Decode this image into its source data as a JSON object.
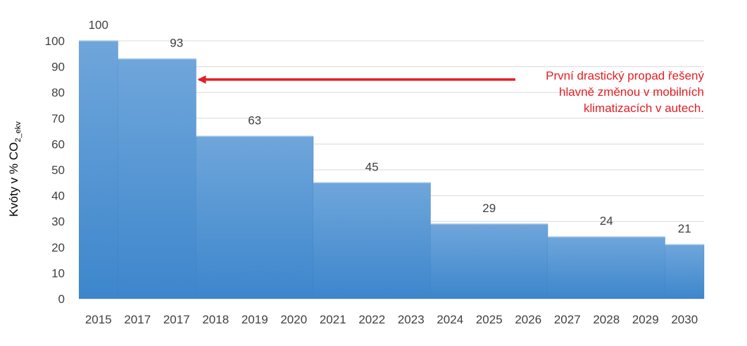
{
  "chart_data": {
    "type": "bar",
    "categories": [
      "2015",
      "2017",
      "2017",
      "2018",
      "2019",
      "2020",
      "2021",
      "2022",
      "2023",
      "2024",
      "2025",
      "2026",
      "2027",
      "2028",
      "2029",
      "2030"
    ],
    "steps": [
      {
        "label": "100",
        "value": 100,
        "from": 0,
        "to": 1
      },
      {
        "label": "93",
        "value": 93,
        "from": 1,
        "to": 3
      },
      {
        "label": "63",
        "value": 63,
        "from": 3,
        "to": 6
      },
      {
        "label": "45",
        "value": 45,
        "from": 6,
        "to": 9
      },
      {
        "label": "29",
        "value": 29,
        "from": 9,
        "to": 12
      },
      {
        "label": "24",
        "value": 24,
        "from": 12,
        "to": 15
      },
      {
        "label": "21",
        "value": 21,
        "from": 15,
        "to": 16
      }
    ],
    "ylabel_main": "Kvóty v % CO",
    "ylabel_sub": "2_ekv",
    "ylim": [
      0,
      100
    ],
    "yticks": [
      0,
      10,
      20,
      30,
      40,
      50,
      60,
      70,
      80,
      90,
      100
    ],
    "grid": true,
    "annotation": {
      "lines": [
        "První drastický propad řešený",
        "hlavně změnou v mobilních",
        "klimatizacích v autech."
      ],
      "points_to": 93
    },
    "colors": {
      "bar_top": "#6fa6db",
      "bar_bottom": "#3d86cc",
      "grid": "#d9d9d9",
      "annotation": "#e31e24"
    }
  }
}
